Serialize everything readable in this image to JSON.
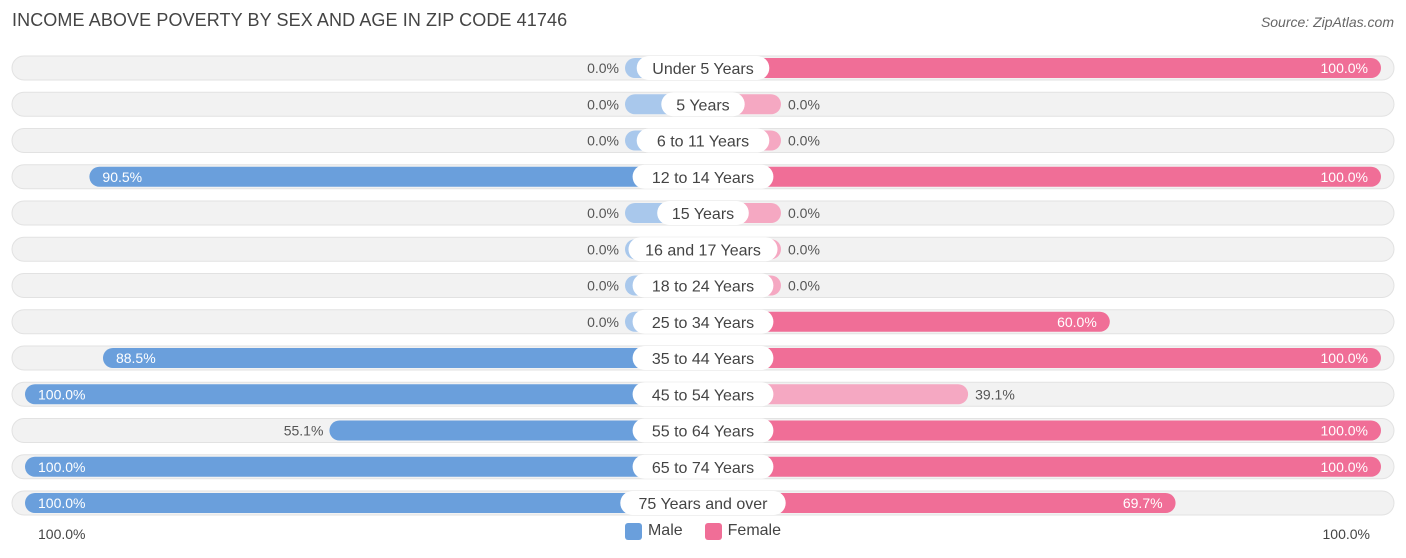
{
  "title": "INCOME ABOVE POVERTY BY SEX AND AGE IN ZIP CODE 41746",
  "source": "Source: ZipAtlas.com",
  "axis": {
    "left_label": "100.0%",
    "right_label": "100.0%"
  },
  "legend": {
    "male": "Male",
    "female": "Female"
  },
  "colors": {
    "male_strong": "#6a9fdc",
    "male_light": "#a9c8ec",
    "female_strong": "#f06e97",
    "female_light": "#f5a8c2",
    "track": "#f0f0f0"
  },
  "chart_data": {
    "type": "bar",
    "orientation": "horizontal-diverging",
    "categories": [
      "Under 5 Years",
      "5 Years",
      "6 to 11 Years",
      "12 to 14 Years",
      "15 Years",
      "16 and 17 Years",
      "18 to 24 Years",
      "25 to 34 Years",
      "35 to 44 Years",
      "45 to 54 Years",
      "55 to 64 Years",
      "65 to 74 Years",
      "75 Years and over"
    ],
    "series": [
      {
        "name": "Male",
        "values": [
          0.0,
          0.0,
          0.0,
          90.5,
          0.0,
          0.0,
          0.0,
          0.0,
          88.5,
          100.0,
          55.1,
          100.0,
          100.0
        ],
        "labels": [
          "0.0%",
          "0.0%",
          "0.0%",
          "90.5%",
          "0.0%",
          "0.0%",
          "0.0%",
          "0.0%",
          "88.5%",
          "100.0%",
          "55.1%",
          "100.0%",
          "100.0%"
        ]
      },
      {
        "name": "Female",
        "values": [
          100.0,
          0.0,
          0.0,
          100.0,
          0.0,
          0.0,
          0.0,
          60.0,
          100.0,
          39.1,
          100.0,
          100.0,
          69.7
        ],
        "labels": [
          "100.0%",
          "0.0%",
          "0.0%",
          "100.0%",
          "0.0%",
          "0.0%",
          "0.0%",
          "60.0%",
          "100.0%",
          "39.1%",
          "100.0%",
          "100.0%",
          "69.7%"
        ]
      }
    ],
    "xlim": [
      0,
      100
    ],
    "legend_position": "bottom-center"
  }
}
